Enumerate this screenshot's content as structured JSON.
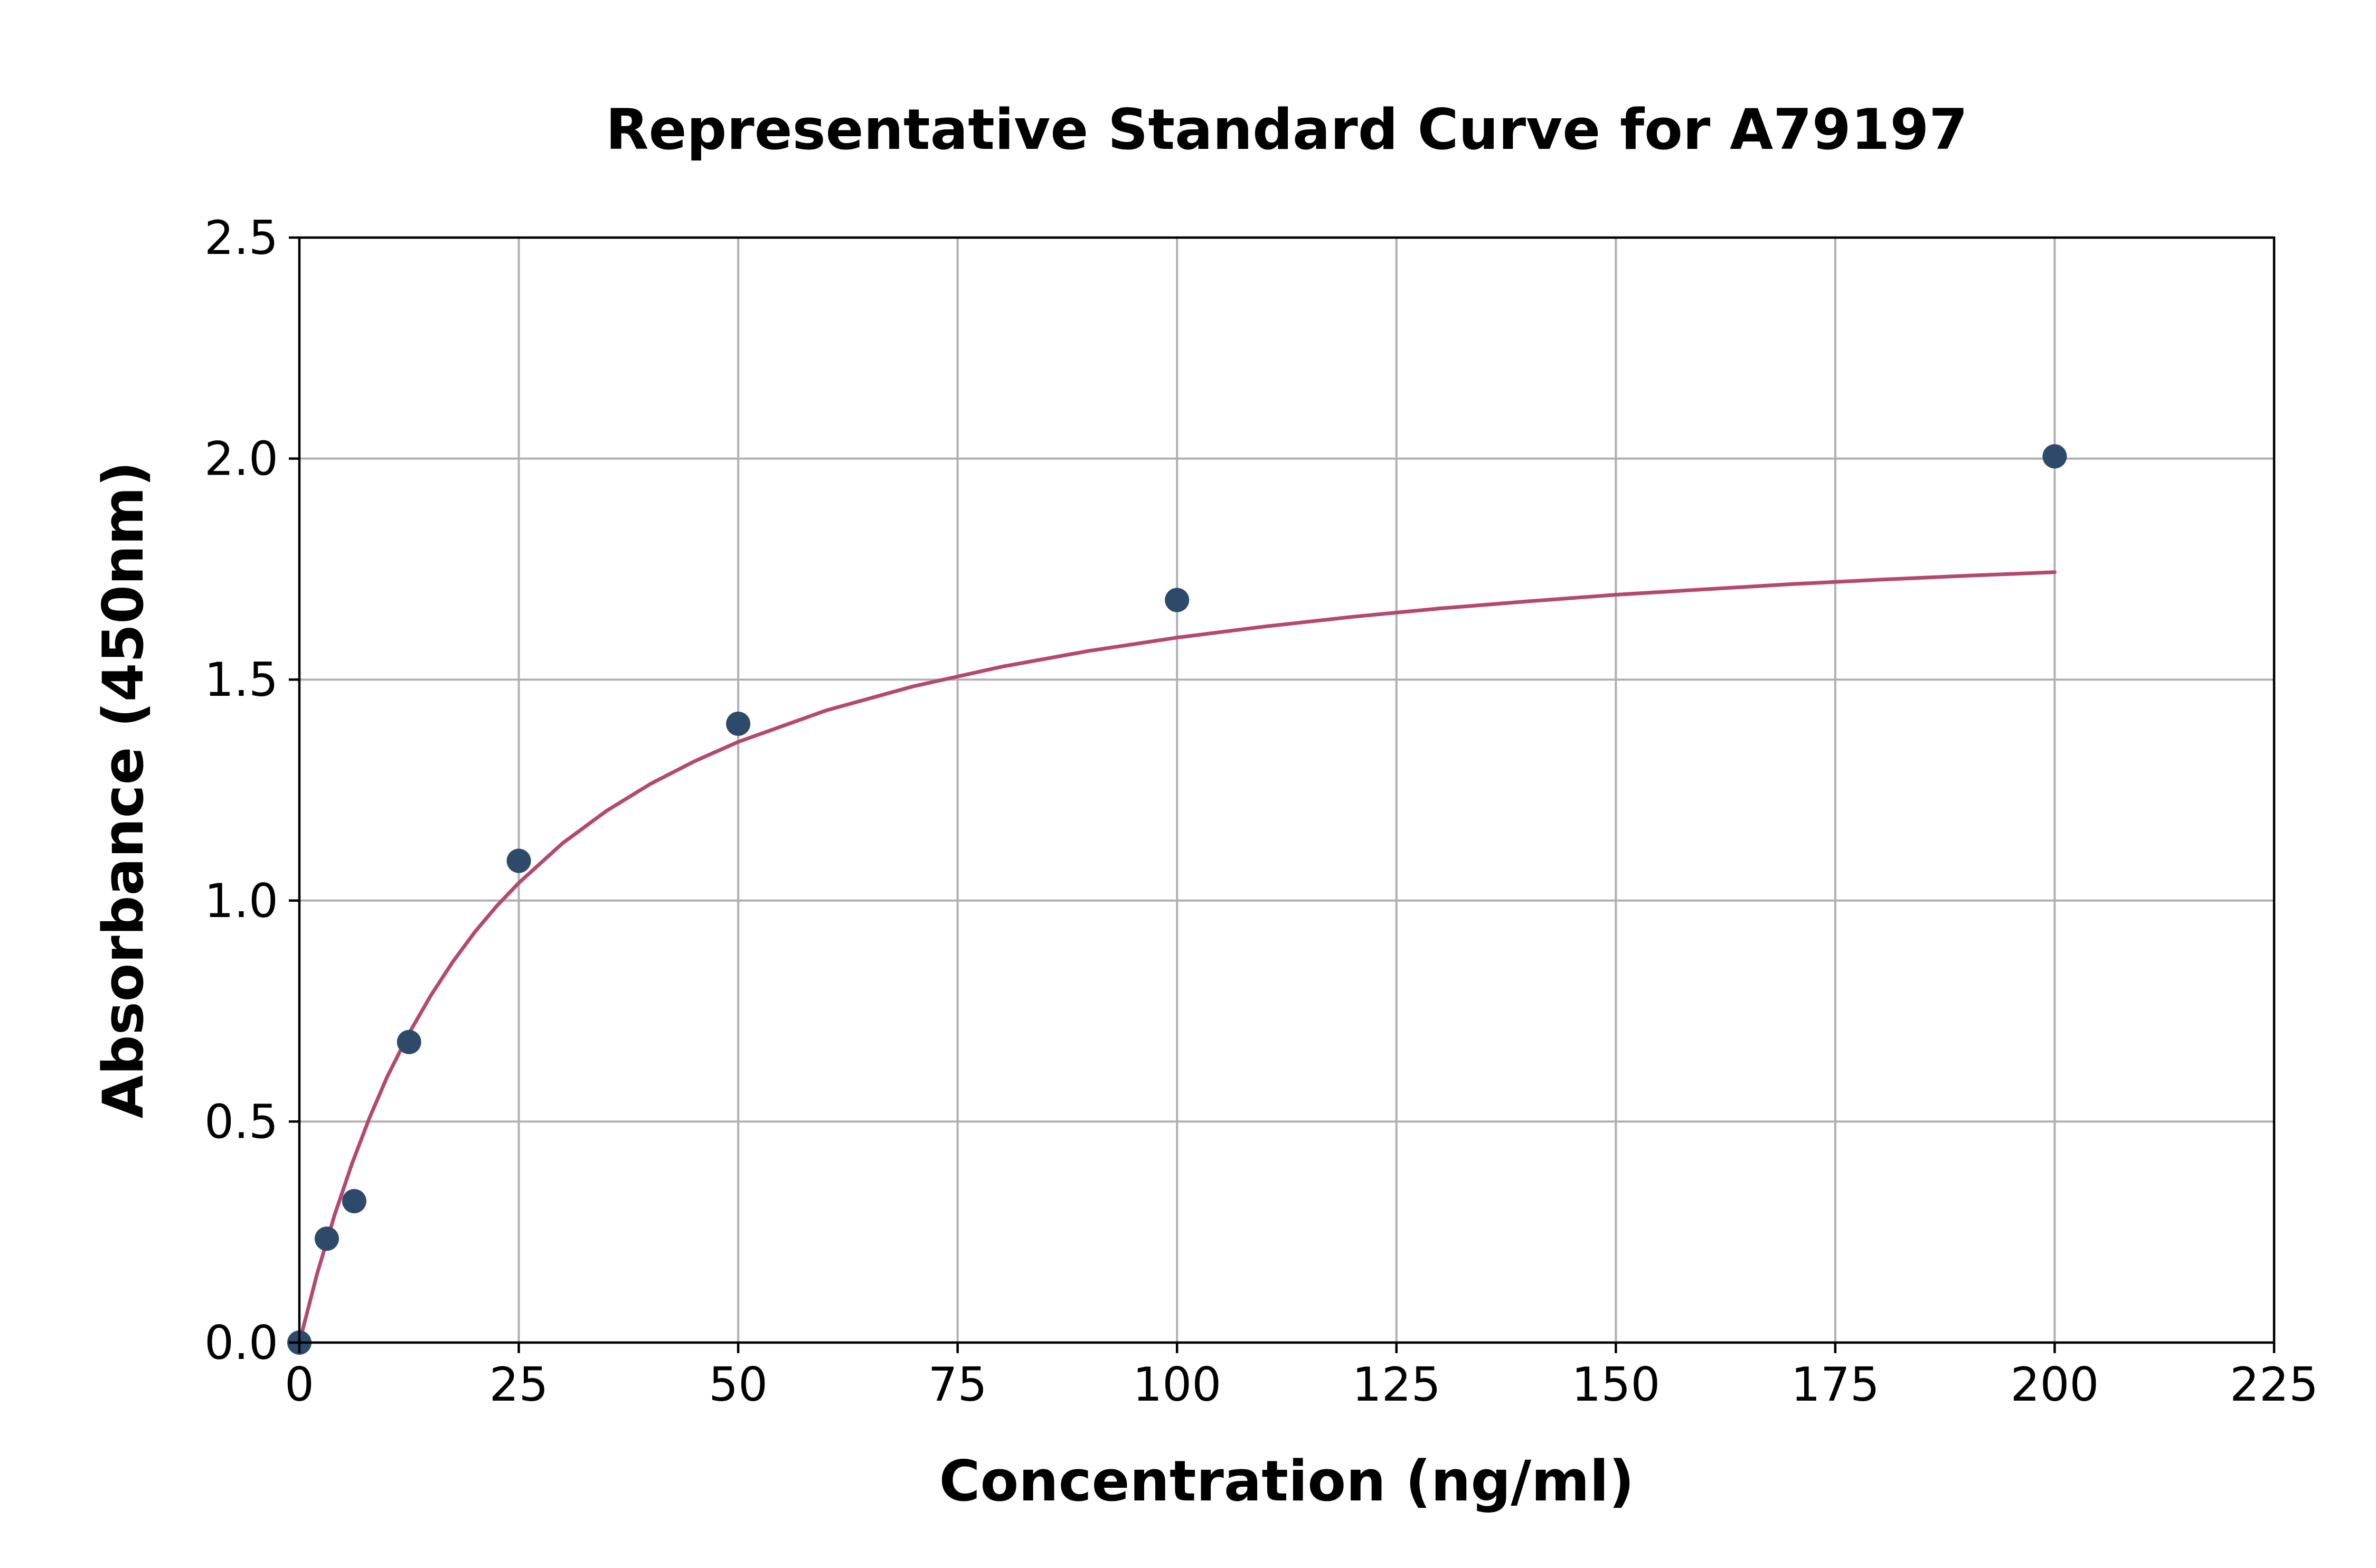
{
  "chart_data": {
    "type": "scatter",
    "title": "Representative Standard Curve for A79197",
    "xlabel": "Concentration (ng/ml)",
    "ylabel": "Absorbance (450nm)",
    "xlim": [
      0,
      225
    ],
    "ylim": [
      0,
      2.5
    ],
    "xticks": [
      0,
      25,
      50,
      75,
      100,
      125,
      150,
      175,
      200,
      225
    ],
    "yticks": [
      0.0,
      0.5,
      1.0,
      1.5,
      2.0,
      2.5
    ],
    "xtick_labels": [
      "0",
      "25",
      "50",
      "75",
      "100",
      "125",
      "150",
      "175",
      "200",
      "225"
    ],
    "ytick_labels": [
      "0.0",
      "0.5",
      "1.0",
      "1.5",
      "2.0",
      "2.5"
    ],
    "grid": true,
    "series": [
      {
        "kind": "points",
        "color": "#2e4a6b",
        "x": [
          0,
          3.125,
          6.25,
          12.5,
          25,
          50,
          100,
          200
        ],
        "y": [
          0.0,
          0.235,
          0.32,
          0.68,
          1.09,
          1.4,
          1.68,
          2.005
        ]
      },
      {
        "kind": "fit-curve",
        "color": "#b5486e",
        "x": [
          0,
          2,
          4,
          6,
          8,
          10,
          12.5,
          15,
          17.5,
          20,
          22.5,
          25,
          30,
          35,
          40,
          45,
          50,
          60,
          70,
          80,
          90,
          100,
          110,
          120,
          130,
          140,
          150,
          160,
          170,
          180,
          190,
          200
        ],
        "y": [
          0.0,
          0.154,
          0.288,
          0.405,
          0.509,
          0.601,
          0.7,
          0.786,
          0.862,
          0.929,
          0.988,
          1.04,
          1.13,
          1.203,
          1.264,
          1.315,
          1.359,
          1.43,
          1.485,
          1.529,
          1.565,
          1.595,
          1.62,
          1.642,
          1.661,
          1.677,
          1.692,
          1.704,
          1.716,
          1.726,
          1.735,
          1.743
        ]
      }
    ]
  }
}
